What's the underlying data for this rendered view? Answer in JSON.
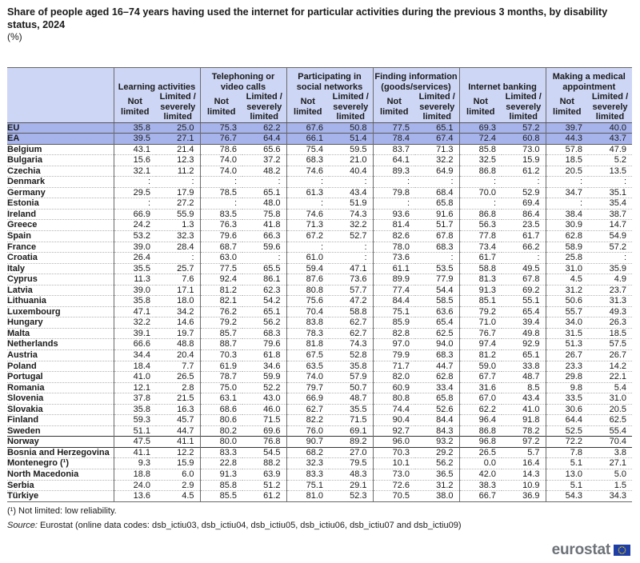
{
  "chart_data": {
    "type": "table",
    "title": "Share of people aged 16–74 years having used the internet for particular activities during the previous 3 months, by disability status, 2024",
    "unit": "(%)",
    "groups": [
      "Learning activities",
      "Telephoning or video calls",
      "Participating in social networks",
      "Finding information (goods/services)",
      "Internet banking",
      "Making a medical appointment"
    ],
    "subcolumns": [
      "Not limited",
      "Limited / severely limited"
    ],
    "rows": [
      {
        "country": "EU",
        "values": [
          "35.8",
          "25.0",
          "75.3",
          "62.2",
          "67.6",
          "50.8",
          "77.5",
          "65.1",
          "69.3",
          "57.2",
          "39.7",
          "40.0"
        ]
      },
      {
        "country": "EA",
        "values": [
          "39.5",
          "27.1",
          "76.7",
          "64.4",
          "66.1",
          "51.4",
          "78.4",
          "67.4",
          "72.4",
          "60.8",
          "44.3",
          "43.7"
        ]
      },
      {
        "country": "Belgium",
        "values": [
          "43.1",
          "21.4",
          "78.6",
          "65.6",
          "75.4",
          "59.5",
          "83.7",
          "71.3",
          "85.8",
          "73.0",
          "57.8",
          "47.9"
        ]
      },
      {
        "country": "Bulgaria",
        "values": [
          "15.6",
          "12.3",
          "74.0",
          "37.2",
          "68.3",
          "21.0",
          "64.1",
          "32.2",
          "32.5",
          "15.9",
          "18.5",
          "5.2"
        ]
      },
      {
        "country": "Czechia",
        "values": [
          "32.1",
          "11.2",
          "74.0",
          "48.2",
          "74.6",
          "40.4",
          "89.3",
          "64.9",
          "86.8",
          "61.2",
          "20.5",
          "13.5"
        ]
      },
      {
        "country": "Denmark",
        "values": [
          ":",
          ":",
          ":",
          ":",
          ":",
          ":",
          ":",
          ":",
          ":",
          ":",
          ":",
          ":"
        ]
      },
      {
        "country": "Germany",
        "values": [
          "29.5",
          "17.9",
          "78.5",
          "65.1",
          "61.3",
          "43.4",
          "79.8",
          "68.4",
          "70.0",
          "52.9",
          "34.7",
          "35.1"
        ]
      },
      {
        "country": "Estonia",
        "values": [
          ":",
          "27.2",
          ":",
          "48.0",
          ":",
          "51.9",
          ":",
          "65.8",
          ":",
          "69.4",
          ":",
          "35.4"
        ]
      },
      {
        "country": "Ireland",
        "values": [
          "66.9",
          "55.9",
          "83.5",
          "75.8",
          "74.6",
          "74.3",
          "93.6",
          "91.6",
          "86.8",
          "86.4",
          "38.4",
          "38.7"
        ]
      },
      {
        "country": "Greece",
        "values": [
          "24.2",
          "1.3",
          "76.3",
          "41.8",
          "71.3",
          "32.2",
          "81.4",
          "51.7",
          "56.3",
          "23.5",
          "30.9",
          "14.7"
        ]
      },
      {
        "country": "Spain",
        "values": [
          "53.2",
          "32.3",
          "79.6",
          "66.3",
          "67.2",
          "52.7",
          "82.6",
          "67.8",
          "77.8",
          "61.7",
          "62.8",
          "54.9"
        ]
      },
      {
        "country": "France",
        "values": [
          "39.0",
          "28.4",
          "68.7",
          "59.6",
          ":",
          ":",
          "78.0",
          "68.3",
          "73.4",
          "66.2",
          "58.9",
          "57.2"
        ]
      },
      {
        "country": "Croatia",
        "values": [
          "26.4",
          ":",
          "63.0",
          ":",
          "61.0",
          ":",
          "73.6",
          ":",
          "61.7",
          ":",
          "25.8",
          ":"
        ]
      },
      {
        "country": "Italy",
        "values": [
          "35.5",
          "25.7",
          "77.5",
          "65.5",
          "59.4",
          "47.1",
          "61.1",
          "53.5",
          "58.8",
          "49.5",
          "31.0",
          "35.9"
        ]
      },
      {
        "country": "Cyprus",
        "values": [
          "11.3",
          "7.6",
          "92.4",
          "86.1",
          "87.6",
          "73.6",
          "89.9",
          "77.9",
          "81.3",
          "67.8",
          "4.5",
          "4.9"
        ]
      },
      {
        "country": "Latvia",
        "values": [
          "39.0",
          "17.1",
          "81.2",
          "62.3",
          "80.8",
          "57.7",
          "77.4",
          "54.4",
          "91.3",
          "69.2",
          "31.2",
          "23.7"
        ]
      },
      {
        "country": "Lithuania",
        "values": [
          "35.8",
          "18.0",
          "82.1",
          "54.2",
          "75.6",
          "47.2",
          "84.4",
          "58.5",
          "85.1",
          "55.1",
          "50.6",
          "31.3"
        ]
      },
      {
        "country": "Luxembourg",
        "values": [
          "47.1",
          "34.2",
          "76.2",
          "65.1",
          "70.4",
          "58.8",
          "75.1",
          "63.6",
          "79.2",
          "65.4",
          "55.7",
          "49.3"
        ]
      },
      {
        "country": "Hungary",
        "values": [
          "32.2",
          "14.6",
          "79.2",
          "56.2",
          "83.8",
          "62.7",
          "85.9",
          "65.4",
          "71.0",
          "39.4",
          "34.0",
          "26.3"
        ]
      },
      {
        "country": "Malta",
        "values": [
          "39.1",
          "19.7",
          "85.7",
          "68.3",
          "78.3",
          "62.7",
          "82.8",
          "62.5",
          "76.7",
          "49.8",
          "31.5",
          "18.5"
        ]
      },
      {
        "country": "Netherlands",
        "values": [
          "66.6",
          "48.8",
          "88.7",
          "79.6",
          "81.8",
          "74.3",
          "97.0",
          "94.0",
          "97.4",
          "92.9",
          "51.3",
          "57.5"
        ]
      },
      {
        "country": "Austria",
        "values": [
          "34.4",
          "20.4",
          "70.3",
          "61.8",
          "67.5",
          "52.8",
          "79.9",
          "68.3",
          "81.2",
          "65.1",
          "26.7",
          "26.7"
        ]
      },
      {
        "country": "Poland",
        "values": [
          "18.4",
          "7.7",
          "61.9",
          "34.6",
          "63.5",
          "35.8",
          "71.7",
          "44.7",
          "59.0",
          "33.8",
          "23.3",
          "14.2"
        ]
      },
      {
        "country": "Portugal",
        "values": [
          "41.0",
          "26.5",
          "78.7",
          "59.9",
          "74.0",
          "57.9",
          "82.0",
          "62.8",
          "67.7",
          "48.7",
          "29.8",
          "22.1"
        ]
      },
      {
        "country": "Romania",
        "values": [
          "12.1",
          "2.8",
          "75.0",
          "52.2",
          "79.7",
          "50.7",
          "60.9",
          "33.4",
          "31.6",
          "8.5",
          "9.8",
          "5.4"
        ]
      },
      {
        "country": "Slovenia",
        "values": [
          "37.8",
          "21.5",
          "63.1",
          "43.0",
          "66.9",
          "48.7",
          "80.8",
          "65.8",
          "67.0",
          "43.4",
          "33.5",
          "31.0"
        ]
      },
      {
        "country": "Slovakia",
        "values": [
          "35.8",
          "16.3",
          "68.6",
          "46.0",
          "62.7",
          "35.5",
          "74.4",
          "52.6",
          "62.2",
          "41.0",
          "30.6",
          "20.5"
        ]
      },
      {
        "country": "Finland",
        "values": [
          "59.3",
          "45.7",
          "80.6",
          "71.5",
          "82.2",
          "71.5",
          "90.4",
          "84.4",
          "96.4",
          "91.8",
          "64.4",
          "62.5"
        ]
      },
      {
        "country": "Sweden",
        "values": [
          "51.1",
          "44.7",
          "80.2",
          "69.6",
          "76.0",
          "69.1",
          "92.7",
          "84.3",
          "86.8",
          "78.2",
          "52.5",
          "55.4"
        ]
      },
      {
        "country": "Norway",
        "values": [
          "47.5",
          "41.1",
          "80.0",
          "76.8",
          "90.7",
          "89.2",
          "96.0",
          "93.2",
          "96.8",
          "97.2",
          "72.2",
          "70.4"
        ]
      },
      {
        "country": "Bosnia and Herzegovina",
        "values": [
          "41.1",
          "12.2",
          "83.3",
          "54.5",
          "68.2",
          "27.0",
          "70.3",
          "29.2",
          "26.5",
          "5.7",
          "7.8",
          "3.8"
        ]
      },
      {
        "country": "Montenegro (¹)",
        "values": [
          "9.3",
          "15.9",
          "22.8",
          "88.2",
          "32.3",
          "79.5",
          "10.1",
          "56.2",
          "0.0",
          "16.4",
          "5.1",
          "27.1"
        ]
      },
      {
        "country": "North Macedonia",
        "values": [
          "18.8",
          "6.0",
          "91.3",
          "63.9",
          "83.3",
          "48.3",
          "73.0",
          "36.5",
          "42.0",
          "14.3",
          "13.0",
          "5.0"
        ]
      },
      {
        "country": "Serbia",
        "values": [
          "24.0",
          "2.9",
          "85.8",
          "51.2",
          "75.1",
          "29.1",
          "72.6",
          "31.2",
          "38.3",
          "10.9",
          "5.1",
          "1.5"
        ]
      },
      {
        "country": "Türkiye",
        "values": [
          "13.6",
          "4.5",
          "85.5",
          "61.2",
          "81.0",
          "52.3",
          "70.5",
          "38.0",
          "66.7",
          "36.9",
          "54.3",
          "34.3"
        ]
      }
    ]
  },
  "footnote": "(¹) Not limited: low reliability.",
  "source_label": "Source:",
  "source_text": "Eurostat (online data codes: dsb_ictiu03, dsb_ictiu04, dsb_ictiu05, dsb_ictiu06, dsb_ictiu07 and dsb_ictiu09)",
  "logo_text": "eurostat",
  "icons": {
    "logo": "eu-flag-icon"
  },
  "colors": {
    "header_bg": "#cdd6f5",
    "aggregate_bg": "#a7b4ec",
    "flag": "#1f3fa6",
    "stars": "#ffdd00"
  }
}
